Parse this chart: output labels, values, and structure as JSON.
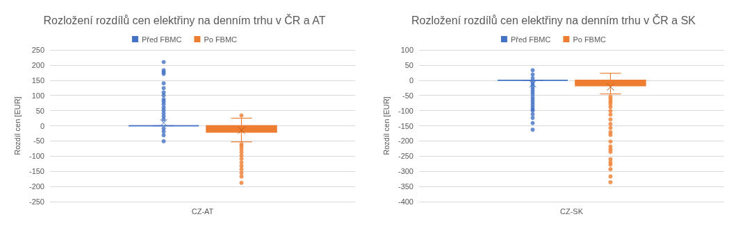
{
  "chart_data": [
    {
      "type": "box",
      "title": "Rozložení rozdílů cen elektřiny na denním trhu v ČR a AT",
      "ylabel": "Rozdíl cen [EUR]",
      "categories": [
        "CZ-AT"
      ],
      "series": [
        {
          "name": "Před FBMC",
          "color": "#4472c4",
          "boxes": [
            {
              "low": 0,
              "q1": 0,
              "median": 0,
              "q3": 0,
              "high": 0,
              "mean": 10,
              "outliers": [
                210,
                183,
                177,
                171,
                140,
                124,
                110,
                100,
                87,
                80,
                71,
                60,
                51,
                41,
                31,
                21,
                -9,
                -19,
                -31,
                -51
              ]
            }
          ]
        },
        {
          "name": "Po FBMC",
          "color": "#ed7d31",
          "boxes": [
            {
              "low": -53,
              "q1": -21,
              "median": 0,
              "q3": 0,
              "high": 25,
              "mean": -15,
              "outliers": [
                34,
                -61,
                -68,
                -77,
                -87,
                -98,
                -109,
                -121,
                -132,
                -143,
                -155,
                -167,
                -188
              ]
            }
          ]
        }
      ],
      "ylim": [
        -250,
        250
      ],
      "yticks": [
        -250,
        -200,
        -150,
        -100,
        -50,
        0,
        50,
        100,
        150,
        200,
        250
      ],
      "grid": "y",
      "legend": "top",
      "marker": "circle"
    },
    {
      "type": "box",
      "title": "Rozložení rozdílů cen elektřiny na denním trhu v ČR a SK",
      "ylabel": "Rozdíl cen [EUR]",
      "categories": [
        "CZ-SK"
      ],
      "series": [
        {
          "name": "Před FBMC",
          "color": "#4472c4",
          "boxes": [
            {
              "low": 0,
              "q1": 0,
              "median": 0,
              "q3": 0,
              "high": 0,
              "mean": -12,
              "outliers": [
                33,
                19,
                7,
                -6,
                -14,
                -22,
                -30,
                -38,
                -46,
                -56,
                -64,
                -72,
                -80,
                -88,
                -96,
                -100,
                -112,
                -124,
                -141,
                -163
              ]
            }
          ]
        },
        {
          "name": "Po FBMC",
          "color": "#ed7d31",
          "boxes": [
            {
              "low": -45,
              "q1": -18,
              "median": 0,
              "q3": 0,
              "high": 23,
              "mean": -22,
              "outliers": [
                -54,
                -62,
                -70,
                -78,
                -88,
                -101,
                -113,
                -129,
                -144,
                -157,
                -171,
                -180,
                -202,
                -218,
                -227,
                -236,
                -260,
                -270,
                -278,
                -293,
                -317,
                -336
              ]
            }
          ]
        }
      ],
      "ylim": [
        -400,
        100
      ],
      "yticks": [
        -400,
        -350,
        -300,
        -250,
        -200,
        -150,
        -100,
        -50,
        0,
        50,
        100
      ],
      "grid": "y",
      "legend": "top",
      "marker": "circle"
    }
  ]
}
